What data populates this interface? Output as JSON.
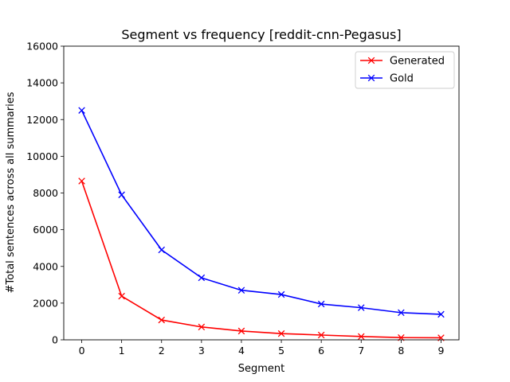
{
  "chart_data": {
    "type": "line",
    "title": "Segment vs frequency [reddit-cnn-Pegasus]",
    "xlabel": "Segment",
    "ylabel": "#Total sentences across all summaries",
    "x": [
      0,
      1,
      2,
      3,
      4,
      5,
      6,
      7,
      8,
      9
    ],
    "xlim": [
      -0.45,
      9.45
    ],
    "ylim": [
      0,
      16000
    ],
    "xticks": [
      0,
      1,
      2,
      3,
      4,
      5,
      6,
      7,
      8,
      9
    ],
    "yticks": [
      0,
      2000,
      4000,
      6000,
      8000,
      10000,
      12000,
      14000,
      16000
    ],
    "grid": false,
    "legend_position": "top-right",
    "series": [
      {
        "name": "Generated",
        "color": "#ff0000",
        "marker": "x",
        "values": [
          8650,
          2380,
          1080,
          700,
          480,
          340,
          260,
          180,
          120,
          110
        ]
      },
      {
        "name": "Gold",
        "color": "#0000ff",
        "marker": "x",
        "values": [
          12500,
          7900,
          4900,
          3380,
          2700,
          2470,
          1950,
          1750,
          1480,
          1390
        ]
      }
    ]
  }
}
